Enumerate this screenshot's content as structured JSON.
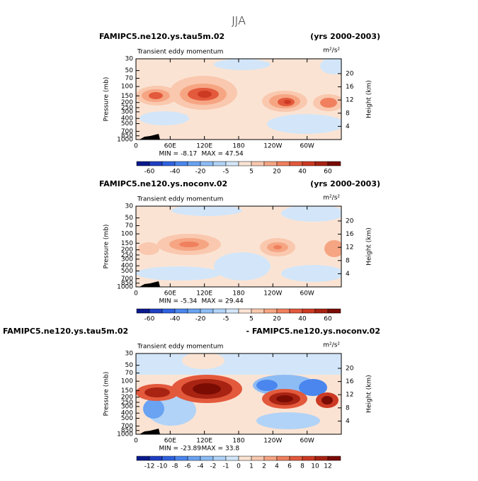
{
  "title": "JJA",
  "chart_data": [
    {
      "type": "contour",
      "left_title": "FAMIPC5.ne120.ys.tau5m.02",
      "right_title": "(yrs 2000-2003)",
      "subtitle": "Transient eddy momentum",
      "units": "m²/s²",
      "ylabel": "Pressure (mb)",
      "y2label": "Height (km)",
      "xlim": [
        0,
        360
      ],
      "xticks": [
        0,
        {
          "value": 60,
          "label": "60E"
        },
        {
          "value": 120,
          "label": "120E"
        },
        180,
        {
          "value": 240,
          "label": "120W"
        },
        {
          "value": 300,
          "label": "60W"
        }
      ],
      "ylim": [
        1000,
        30
      ],
      "log_scale": true,
      "yticks": [
        30,
        50,
        70,
        100,
        150,
        200,
        250,
        300,
        400,
        500,
        700,
        850,
        1000
      ],
      "y2lim": [
        0,
        24.5
      ],
      "y2ticks": [
        4,
        8,
        12,
        16,
        20
      ],
      "min_label": "MIN =",
      "min": -8.17,
      "max_label": "MAX =",
      "max": 47.54,
      "colorbar": {
        "ticks": [
          -60,
          -40,
          -20,
          -5,
          5,
          20,
          40,
          60
        ],
        "colors": [
          "#0a1a8c",
          "#1f3fc2",
          "#2f62e0",
          "#4a86ee",
          "#6aa3f2",
          "#8dbcf5",
          "#b1d3f7",
          "#d3e6f9",
          "#fbe3d3",
          "#f9c8ae",
          "#f6a583",
          "#f0805e",
          "#e3593c",
          "#cc3a23",
          "#a82312",
          "#7a0c04"
        ]
      }
    },
    {
      "type": "contour",
      "left_title": "FAMIPC5.ne120.ys.noconv.02",
      "right_title": "(yrs 2000-2003)",
      "subtitle": "Transient eddy momentum",
      "units": "m²/s²",
      "ylabel": "Pressure (mb)",
      "y2label": "Height (km)",
      "xlim": [
        0,
        360
      ],
      "xticks": [
        0,
        {
          "value": 60,
          "label": "60E"
        },
        {
          "value": 120,
          "label": "120E"
        },
        180,
        {
          "value": 240,
          "label": "120W"
        },
        {
          "value": 300,
          "label": "60W"
        }
      ],
      "ylim": [
        1000,
        30
      ],
      "log_scale": true,
      "yticks": [
        30,
        50,
        70,
        100,
        150,
        200,
        250,
        300,
        400,
        500,
        700,
        850,
        1000
      ],
      "y2lim": [
        0,
        24.5
      ],
      "y2ticks": [
        4,
        8,
        12,
        16,
        20
      ],
      "min_label": "MIN =",
      "min": -5.34,
      "max_label": "MAX =",
      "max": 29.44,
      "colorbar": {
        "ticks": [
          -60,
          -40,
          -20,
          -5,
          5,
          20,
          40,
          60
        ],
        "colors": [
          "#0a1a8c",
          "#1f3fc2",
          "#2f62e0",
          "#4a86ee",
          "#6aa3f2",
          "#8dbcf5",
          "#b1d3f7",
          "#d3e6f9",
          "#fbe3d3",
          "#f9c8ae",
          "#f6a583",
          "#f0805e",
          "#e3593c",
          "#cc3a23",
          "#a82312",
          "#7a0c04"
        ]
      }
    },
    {
      "type": "contour",
      "left_title": "FAMIPC5.ne120.ys.tau5m.02",
      "right_title": "- FAMIPC5.ne120.ys.noconv.02",
      "subtitle": "Transient eddy momentum",
      "units": "m²/s²",
      "ylabel": "Pressure (mb)",
      "y2label": "Height (km)",
      "xlim": [
        0,
        360
      ],
      "xticks": [
        0,
        {
          "value": 60,
          "label": "60E"
        },
        {
          "value": 120,
          "label": "120E"
        },
        180,
        {
          "value": 240,
          "label": "120W"
        },
        {
          "value": 300,
          "label": "60W"
        }
      ],
      "ylim": [
        1000,
        30
      ],
      "log_scale": true,
      "yticks": [
        30,
        50,
        70,
        100,
        150,
        200,
        250,
        300,
        400,
        500,
        700,
        850,
        1000
      ],
      "y2lim": [
        0,
        24.5
      ],
      "y2ticks": [
        4,
        8,
        12,
        16,
        20
      ],
      "min_label": "MIN =",
      "min": -23.89,
      "max_label": "MAX =",
      "max": 33.8,
      "colorbar": {
        "ticks": [
          -12,
          -10,
          -8,
          -6,
          -4,
          -2,
          -1,
          0,
          1,
          2,
          4,
          6,
          8,
          10,
          12
        ],
        "colors": [
          "#0a1a8c",
          "#1f3fc2",
          "#2f62e0",
          "#4a86ee",
          "#6aa3f2",
          "#8dbcf5",
          "#b1d3f7",
          "#d3e6f9",
          "#fbe3d3",
          "#f9c8ae",
          "#f6a583",
          "#f0805e",
          "#e3593c",
          "#cc3a23",
          "#a82312",
          "#7a0c04"
        ]
      }
    }
  ]
}
